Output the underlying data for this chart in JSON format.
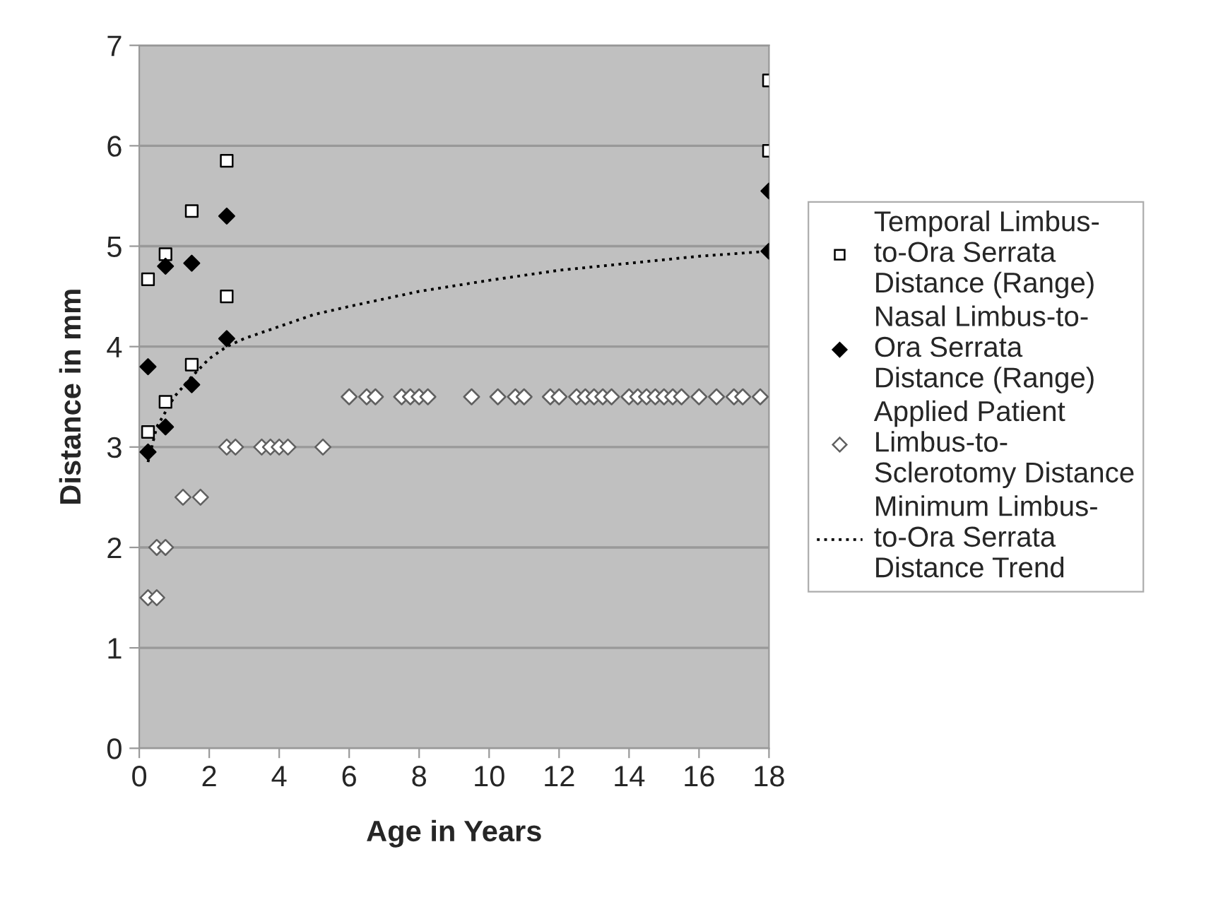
{
  "chart_data": {
    "type": "scatter",
    "xlabel": "Age in Years",
    "ylabel": "Distance in mm",
    "xlim": [
      0,
      18
    ],
    "xticks": [
      0,
      2,
      4,
      6,
      8,
      10,
      12,
      14,
      16,
      18
    ],
    "ylim": [
      0,
      7
    ],
    "yticks": [
      0,
      1,
      2,
      3,
      4,
      5,
      6,
      7
    ],
    "grid": "y",
    "legend": "right",
    "series": [
      {
        "name": "Temporal Limbus-\nto-Ora Serrata\nDistance (Range)",
        "marker": "square",
        "color": "#ffffff",
        "x": [
          0.25,
          0.25,
          0.75,
          0.75,
          1.5,
          1.5,
          2.5,
          2.5,
          18,
          18
        ],
        "values": [
          4.67,
          3.15,
          4.92,
          3.45,
          5.35,
          3.82,
          5.85,
          4.5,
          6.65,
          5.95
        ]
      },
      {
        "name": "Nasal Limbus-to-\nOra Serrata\nDistance (Range)",
        "marker": "diamond",
        "color": "#000000",
        "x": [
          0.25,
          0.25,
          0.75,
          0.75,
          1.5,
          1.5,
          2.5,
          2.5,
          18,
          18
        ],
        "values": [
          3.8,
          2.95,
          4.8,
          3.2,
          4.83,
          3.62,
          5.3,
          4.08,
          5.55,
          4.95
        ]
      },
      {
        "name": "Applied Patient\nLimbus-to-\nSclerotomy Distance",
        "marker": "diamond",
        "color": "#606060",
        "x": [
          0.25,
          0.5,
          0.5,
          0.75,
          1.25,
          1.75,
          2.5,
          2.75,
          3.5,
          3.75,
          4,
          4.25,
          5.25,
          6,
          6.5,
          6.75,
          7.5,
          7.75,
          8,
          8.25,
          9.5,
          10.25,
          10.75,
          11,
          11.75,
          12,
          12.5,
          12.75,
          13,
          13.25,
          13.5,
          14,
          14.25,
          14.5,
          14.75,
          15,
          15.25,
          15.5,
          16,
          16.5,
          17,
          17.25,
          17.75
        ],
        "values": [
          1.5,
          1.5,
          2,
          2,
          2.5,
          2.5,
          3,
          3,
          3,
          3,
          3,
          3,
          3,
          3.5,
          3.5,
          3.5,
          3.5,
          3.5,
          3.5,
          3.5,
          3.5,
          3.5,
          3.5,
          3.5,
          3.5,
          3.5,
          3.5,
          3.5,
          3.5,
          3.5,
          3.5,
          3.5,
          3.5,
          3.5,
          3.5,
          3.5,
          3.5,
          3.5,
          3.5,
          3.5,
          3.5,
          3.5,
          3.5
        ]
      },
      {
        "name": "Minimum Limbus-\nto-Ora Serrata\nDistance Trend",
        "type": "line",
        "marker": "none",
        "line_style": "dotted",
        "color": "#000000",
        "x": [
          0.25,
          0.5,
          0.75,
          1,
          1.5,
          2,
          2.5,
          3,
          4,
          5,
          6,
          8,
          10,
          12,
          14,
          16,
          18
        ],
        "values": [
          2.85,
          3.2,
          3.35,
          3.5,
          3.7,
          3.88,
          4.0,
          4.08,
          4.2,
          4.32,
          4.4,
          4.55,
          4.66,
          4.76,
          4.83,
          4.9,
          4.95
        ]
      }
    ]
  }
}
